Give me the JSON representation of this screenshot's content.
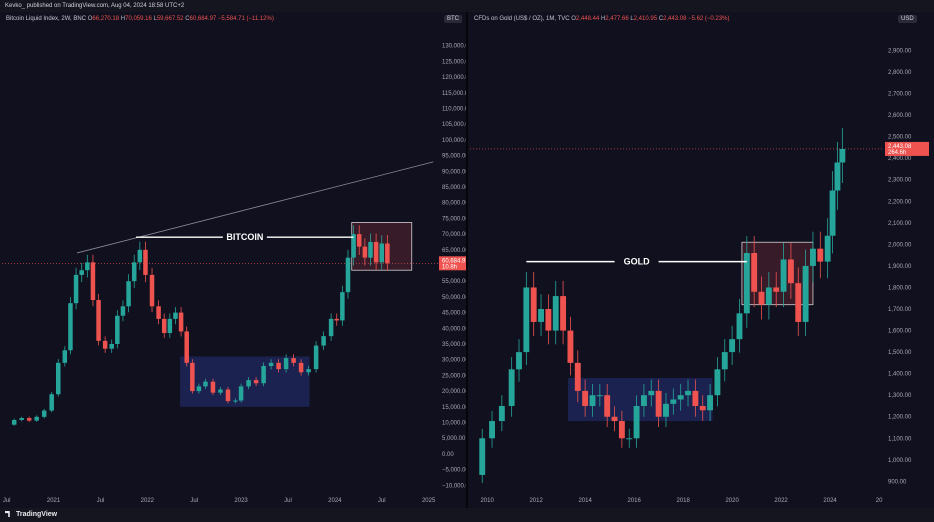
{
  "header": {
    "publish_line": "Kevko_ published on TradingView.com, Aug 04, 2024 18:58 UTC+2"
  },
  "footer": {
    "brand": "TradingView"
  },
  "colors": {
    "up": "#26a69a",
    "down": "#ef5350",
    "accumulation_box": "#2b3a8f",
    "range_box": "#6b2a35",
    "annotation_line": "#ffffff",
    "price_tag": "#ef5350"
  },
  "chart_data": [
    {
      "type": "candlestick",
      "panel": "left",
      "legend": {
        "title": "Bitcoin Liquid Index, 2W, BNC",
        "open": "O",
        "open_val": "66,270.18",
        "high": "H",
        "high_val": "70,059.16",
        "low": "L",
        "low_val": "59,667.52",
        "close": "C",
        "close_val": "60,684.97",
        "change_val": "−5,584.71 (−11.12%)"
      },
      "currency_tag": "BTC",
      "annotation": "BITCOIN",
      "price_tag": "60,684.97",
      "price_tag_sub": "10.8h",
      "y_ticks": [
        "130,000.00",
        "125,000.00",
        "120,000.00",
        "115,000.00",
        "110,000.00",
        "105,000.00",
        "100,000.00",
        "95,000.00",
        "90,000.00",
        "85,000.00",
        "80,000.00",
        "75,000.00",
        "70,000.00",
        "65,000.00",
        "60,000.00",
        "55,000.00",
        "50,000.00",
        "45,000.00",
        "40,000.00",
        "35,000.00",
        "30,000.00",
        "25,000.00",
        "20,000.00",
        "15,000.00",
        "10,000.00",
        "5,000.00",
        "0.00",
        "−5,000.00",
        "−10,000.00"
      ],
      "y_tick_values": [
        130000,
        125000,
        120000,
        115000,
        110000,
        105000,
        100000,
        95000,
        90000,
        85000,
        80000,
        75000,
        70000,
        65000,
        60000,
        55000,
        50000,
        45000,
        40000,
        35000,
        30000,
        25000,
        20000,
        15000,
        10000,
        5000,
        0,
        -5000,
        -10000
      ],
      "x_ticks": [
        "Jul",
        "2021",
        "Jul",
        "2022",
        "Jul",
        "2023",
        "Jul",
        "2024",
        "Jul",
        "2025"
      ],
      "x_tick_values": [
        2020.5,
        2021.0,
        2021.5,
        2022.0,
        2022.5,
        2023.0,
        2023.5,
        2024.0,
        2024.5,
        2025.0
      ],
      "xlim": [
        2020.45,
        2025.1
      ],
      "ylim": [
        -11500,
        135000
      ],
      "close_series": {
        "x": [
          2020.5,
          2020.58,
          2020.66,
          2020.74,
          2020.82,
          2020.9,
          2020.98,
          2021.05,
          2021.12,
          2021.18,
          2021.24,
          2021.3,
          2021.36,
          2021.42,
          2021.48,
          2021.55,
          2021.62,
          2021.68,
          2021.74,
          2021.8,
          2021.86,
          2021.92,
          2021.98,
          2022.05,
          2022.12,
          2022.18,
          2022.24,
          2022.3,
          2022.36,
          2022.42,
          2022.48,
          2022.55,
          2022.62,
          2022.7,
          2022.78,
          2022.86,
          2022.94,
          2023.0,
          2023.08,
          2023.16,
          2023.24,
          2023.32,
          2023.4,
          2023.48,
          2023.56,
          2023.64,
          2023.72,
          2023.8,
          2023.88,
          2023.96,
          2024.02,
          2024.08,
          2024.14,
          2024.2,
          2024.26,
          2024.32,
          2024.38,
          2024.44,
          2024.5,
          2024.56
        ],
        "close": [
          9300,
          10800,
          11400,
          10600,
          11800,
          13800,
          19000,
          29000,
          33000,
          48000,
          57000,
          58500,
          61000,
          49000,
          36000,
          33500,
          35000,
          44000,
          47000,
          55000,
          61000,
          65000,
          57000,
          47000,
          43000,
          38500,
          43000,
          45000,
          39000,
          29000,
          20000,
          21500,
          23000,
          19500,
          20500,
          16800,
          17000,
          21500,
          23500,
          22500,
          28000,
          29000,
          27000,
          30500,
          29000,
          26000,
          27000,
          34500,
          37500,
          43000,
          42500,
          51500,
          62500,
          70000,
          66000,
          62500,
          67500,
          61000,
          67000,
          60700
        ]
      },
      "range_box": {
        "x_start": 2024.18,
        "x_end": 2024.82,
        "y_low": 58500,
        "y_high": 73700
      },
      "accumulation_box": {
        "x_start": 2022.35,
        "x_end": 2023.73,
        "y_low": 15000,
        "y_high": 31000
      },
      "annotation_line": {
        "x_start": 2021.88,
        "x_end": 2024.2,
        "y": 69000
      },
      "trendline": {
        "x_start": 2021.25,
        "y_start": 64000,
        "x_end": 2025.05,
        "y_end": 93000
      }
    },
    {
      "type": "candlestick",
      "panel": "right",
      "legend": {
        "title": "CFDs on Gold (US$ / OZ), 1M, TVC",
        "open": "O",
        "open_val": "2,448.44",
        "high": "H",
        "high_val": "2,477.66",
        "low": "L",
        "low_val": "2,410.95",
        "close": "C",
        "close_val": "2,443.08",
        "change_val": "−5.62 (−0.23%)"
      },
      "currency_tag": "USD",
      "annotation": "GOLD",
      "price_tag": "2,443.08",
      "price_tag_sub": "264.6h",
      "y_ticks": [
        "2,900.00",
        "2,800.00",
        "2,700.00",
        "2,600.00",
        "2,500.00",
        "2,400.00",
        "2,300.00",
        "2,200.00",
        "2,100.00",
        "2,000.00",
        "1,900.00",
        "1,800.00",
        "1,700.00",
        "1,600.00",
        "1,500.00",
        "1,400.00",
        "1,300.00",
        "1,200.00",
        "1,100.00",
        "1,000.00",
        "900.00"
      ],
      "y_tick_values": [
        2900,
        2800,
        2700,
        2600,
        2500,
        2400,
        2300,
        2200,
        2100,
        2000,
        1900,
        1800,
        1700,
        1600,
        1500,
        1400,
        1300,
        1200,
        1100,
        1000,
        900
      ],
      "x_ticks": [
        "2010",
        "2012",
        "2014",
        "2016",
        "2018",
        "2020",
        "2022",
        "2024",
        "20"
      ],
      "x_tick_values": [
        2010,
        2012,
        2014,
        2016,
        2018,
        2020,
        2022,
        2024,
        2026
      ],
      "xlim": [
        2009.3,
        2026.2
      ],
      "ylim": [
        860,
        2995
      ],
      "close_series": {
        "x": [
          2009.4,
          2009.8,
          2010.2,
          2010.6,
          2011.0,
          2011.3,
          2011.6,
          2011.9,
          2012.2,
          2012.5,
          2012.8,
          2013.1,
          2013.4,
          2013.7,
          2014.0,
          2014.3,
          2014.6,
          2014.9,
          2015.2,
          2015.5,
          2015.8,
          2016.1,
          2016.4,
          2016.7,
          2017.0,
          2017.3,
          2017.6,
          2017.9,
          2018.2,
          2018.5,
          2018.8,
          2019.1,
          2019.4,
          2019.7,
          2020.0,
          2020.3,
          2020.6,
          2020.9,
          2021.2,
          2021.5,
          2021.8,
          2022.1,
          2022.4,
          2022.7,
          2023.0,
          2023.3,
          2023.6,
          2023.9,
          2024.1,
          2024.3,
          2024.5
        ],
        "close": [
          930,
          1100,
          1180,
          1250,
          1420,
          1500,
          1800,
          1640,
          1700,
          1600,
          1760,
          1600,
          1450,
          1320,
          1250,
          1300,
          1300,
          1200,
          1180,
          1100,
          1100,
          1250,
          1300,
          1320,
          1200,
          1260,
          1280,
          1300,
          1320,
          1250,
          1230,
          1300,
          1420,
          1500,
          1560,
          1680,
          1960,
          1780,
          1720,
          1800,
          1780,
          1930,
          1820,
          1640,
          1900,
          1980,
          1920,
          2040,
          2250,
          2380,
          2443
        ]
      },
      "range_box": {
        "x_start": 2020.4,
        "x_end": 2023.3,
        "y_low": 1720,
        "y_high": 2010
      },
      "accumulation_box": {
        "x_start": 2013.3,
        "x_end": 2019.2,
        "y_low": 1180,
        "y_high": 1380
      },
      "annotation_line": {
        "x_start": 2011.6,
        "x_end": 2020.6,
        "y": 1920
      }
    }
  ]
}
